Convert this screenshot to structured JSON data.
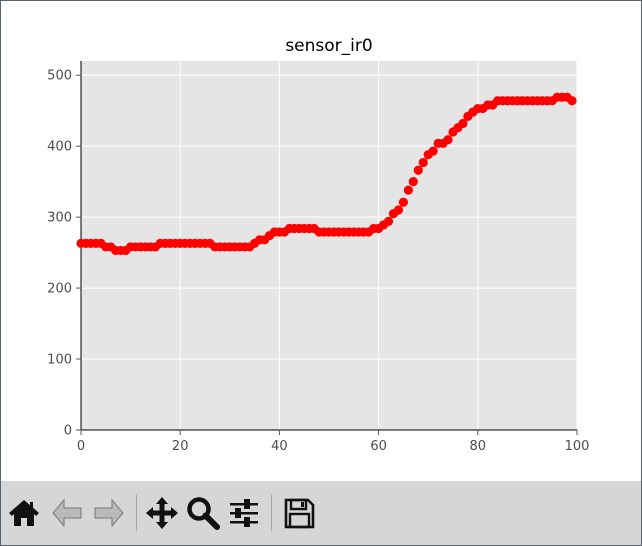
{
  "chart_data": {
    "type": "scatter",
    "title": "sensor_ir0",
    "xlabel": "",
    "ylabel": "",
    "xlim": [
      0,
      100
    ],
    "ylim": [
      0,
      520
    ],
    "xticks": [
      0,
      20,
      40,
      60,
      80,
      100
    ],
    "yticks": [
      0,
      100,
      200,
      300,
      400,
      500
    ],
    "grid": true,
    "marker_color": "#ff0000",
    "background_color": "#e5e5e5",
    "x": [
      0,
      1,
      2,
      3,
      4,
      5,
      6,
      7,
      8,
      9,
      10,
      11,
      12,
      13,
      14,
      15,
      16,
      17,
      18,
      19,
      20,
      21,
      22,
      23,
      24,
      25,
      26,
      27,
      28,
      29,
      30,
      31,
      32,
      33,
      34,
      35,
      36,
      37,
      38,
      39,
      40,
      41,
      42,
      43,
      44,
      45,
      46,
      47,
      48,
      49,
      50,
      51,
      52,
      53,
      54,
      55,
      56,
      57,
      58,
      59,
      60,
      61,
      62,
      63,
      64,
      65,
      66,
      67,
      68,
      69,
      70,
      71,
      72,
      73,
      74,
      75,
      76,
      77,
      78,
      79,
      80,
      81,
      82,
      83,
      84,
      85,
      86,
      87,
      88,
      89,
      90,
      91,
      92,
      93,
      94,
      95,
      96,
      97,
      98,
      99
    ],
    "y": [
      263,
      263,
      263,
      263,
      263,
      258,
      258,
      253,
      253,
      253,
      258,
      258,
      258,
      258,
      258,
      258,
      263,
      263,
      263,
      263,
      263,
      263,
      263,
      263,
      263,
      263,
      263,
      258,
      258,
      258,
      258,
      258,
      258,
      258,
      258,
      263,
      268,
      268,
      274,
      279,
      279,
      279,
      284,
      284,
      284,
      284,
      284,
      284,
      279,
      279,
      279,
      279,
      279,
      279,
      279,
      279,
      279,
      279,
      279,
      284,
      284,
      289,
      294,
      305,
      310,
      321,
      338,
      350,
      366,
      377,
      388,
      393,
      404,
      404,
      409,
      420,
      426,
      432,
      442,
      448,
      453,
      453,
      458,
      458,
      464,
      464,
      464,
      464,
      464,
      464,
      464,
      464,
      464,
      464,
      464,
      464,
      469,
      469,
      469,
      464
    ]
  },
  "toolbar": {
    "buttons": [
      {
        "name": "home-button",
        "icon": "home-icon"
      },
      {
        "name": "back-button",
        "icon": "arrow-left-icon"
      },
      {
        "name": "forward-button",
        "icon": "arrow-right-icon"
      },
      {
        "name": "pan-button",
        "icon": "move-arrows-icon"
      },
      {
        "name": "zoom-button",
        "icon": "magnifier-icon"
      },
      {
        "name": "configure-subplots-button",
        "icon": "sliders-icon"
      },
      {
        "name": "save-button",
        "icon": "floppy-disk-icon"
      }
    ]
  }
}
